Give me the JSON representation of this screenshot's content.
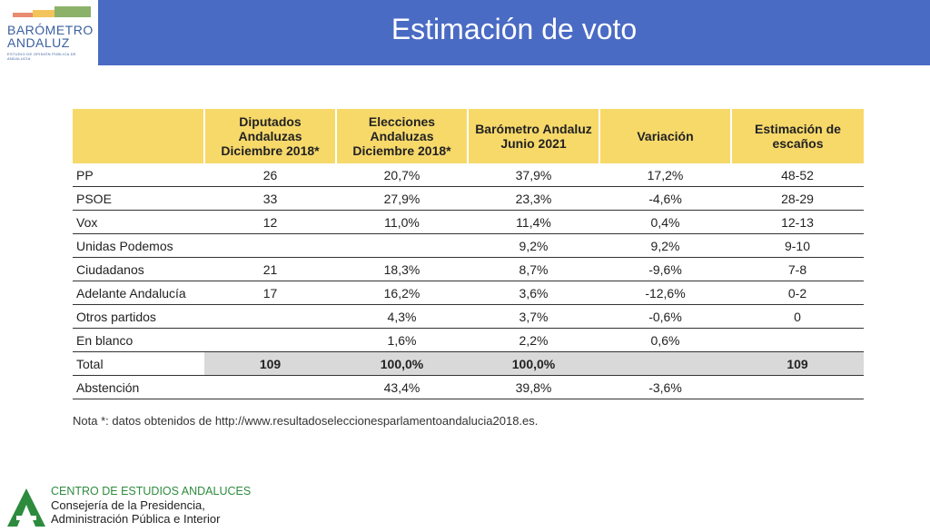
{
  "header": {
    "logo_title_1": "BARÓMETRO",
    "logo_title_2": "ANDALUZ",
    "logo_subtitle": "ESTUDIO DE OPINIÓN PÚBLICA DE ANDALUCÍA",
    "title": "Estimación de voto",
    "banner_color": "#4a6bc4"
  },
  "table": {
    "columns": [
      "",
      "Diputados Andaluzas Diciembre 2018*",
      "Elecciones Andaluzas Diciembre 2018*",
      "Barómetro Andaluz Junio 2021",
      "Variación",
      "Estimación de escaños"
    ],
    "header_color": "#f7d96a",
    "rows": [
      {
        "name": "PP",
        "a": "26",
        "b": "20,7%",
        "c": "37,9%",
        "d": "17,2%",
        "e": "48-52"
      },
      {
        "name": "PSOE",
        "a": "33",
        "b": "27,9%",
        "c": "23,3%",
        "d": "-4,6%",
        "e": "28-29"
      },
      {
        "name": "Vox",
        "a": "12",
        "b": "11,0%",
        "c": "11,4%",
        "d": "0,4%",
        "e": "12-13"
      },
      {
        "name": "Unidas Podemos",
        "a": "",
        "b": "",
        "c": "9,2%",
        "d": "9,2%",
        "e": "9-10"
      },
      {
        "name": "Ciudadanos",
        "a": "21",
        "b": "18,3%",
        "c": "8,7%",
        "d": "-9,6%",
        "e": "7-8"
      },
      {
        "name": "Adelante Andalucía",
        "a": "17",
        "b": "16,2%",
        "c": "3,6%",
        "d": "-12,6%",
        "e": "0-2"
      },
      {
        "name": "Otros partidos",
        "a": "",
        "b": "4,3%",
        "c": "3,7%",
        "d": "-0,6%",
        "e": "0"
      },
      {
        "name": "En blanco",
        "a": "",
        "b": "1,6%",
        "c": "2,2%",
        "d": "0,6%",
        "e": ""
      }
    ],
    "total": {
      "name": "Total",
      "a": "109",
      "b": "100,0%",
      "c": "100,0%",
      "d": "",
      "e": "109"
    },
    "abstention": {
      "name": "Abstención",
      "a": "",
      "b": "43,4%",
      "c": "39,8%",
      "d": "-3,6%",
      "e": ""
    }
  },
  "note": "Nota *: datos obtenidos de http://www.resultadoseleccionesparlamentoandalucia2018.es.",
  "footer": {
    "line1": "CENTRO DE ESTUDIOS ANDALUCES",
    "line2": "Consejería de la Presidencia,",
    "line3": "Administración Pública e Interior",
    "brand_color": "#2e8b3e"
  }
}
